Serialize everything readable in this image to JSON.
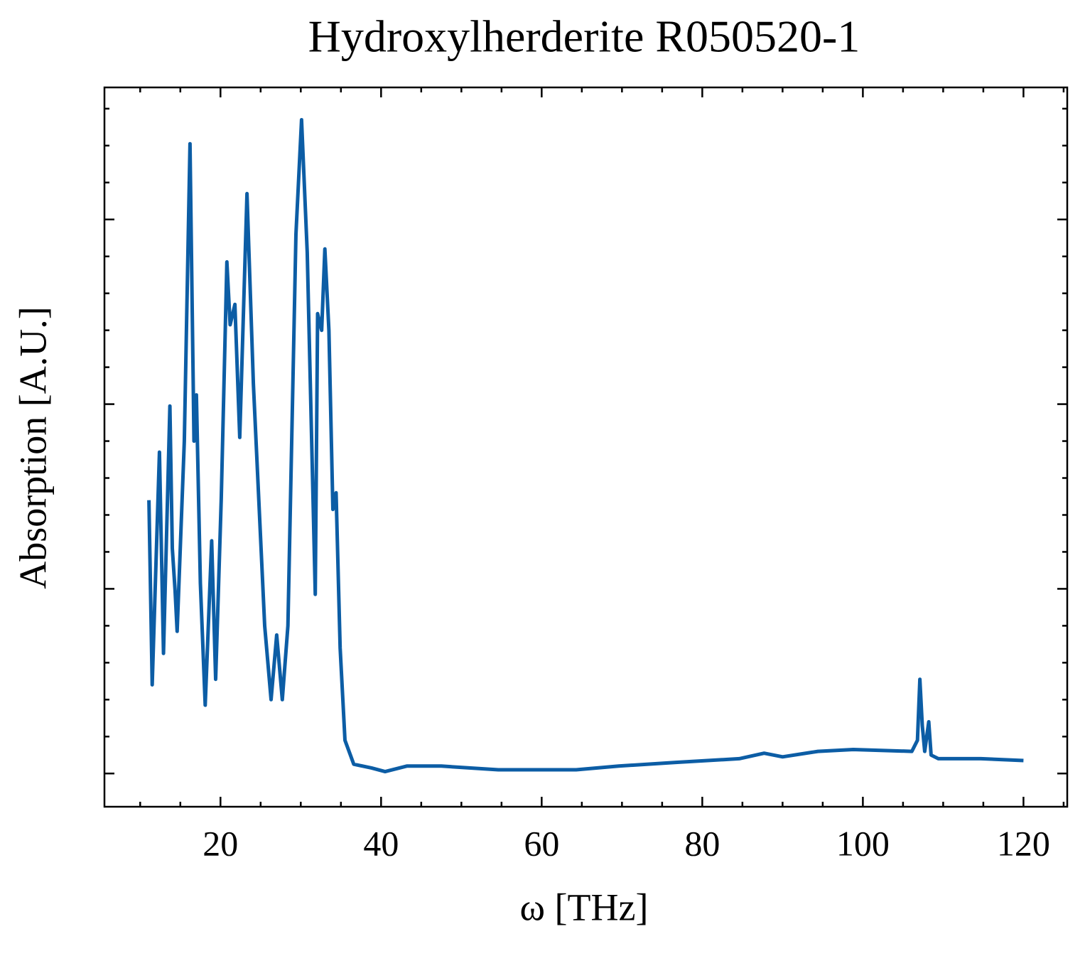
{
  "chart_data": {
    "type": "line",
    "title": "Hydroxylherderite R050520-1",
    "x_label": "ω [THz]",
    "y_label": "Absorption [A.U.]",
    "x": [
      11.09,
      11.5,
      12.4,
      12.9,
      13.7,
      14.0,
      14.35,
      14.6,
      15.5,
      16.2,
      16.7,
      17.0,
      17.5,
      18.1,
      18.9,
      19.4,
      20.1,
      20.8,
      21.2,
      21.8,
      22.4,
      23.3,
      24.1,
      25.5,
      26.3,
      27.0,
      27.7,
      28.4,
      29.4,
      30.1,
      30.8,
      31.8,
      32.1,
      32.6,
      33.0,
      33.5,
      34.0,
      34.4,
      34.9,
      35.5,
      36.6,
      38.8,
      40.5,
      43.2,
      47.5,
      54.6,
      60,
      64.3,
      69.6,
      76.7,
      84.6,
      87.7,
      90,
      94.4,
      98.8,
      106.1,
      106.8,
      107.1,
      107.4,
      107.7,
      108.2,
      108.5,
      109.4,
      114.7,
      120
    ],
    "series": [
      {
        "name": "Hydroxylherderite R050520-1",
        "color": "#0C5DA5",
        "values": [
          1.48,
          0.48,
          1.74,
          0.65,
          1.99,
          1.22,
          0.99,
          0.77,
          1.8,
          3.41,
          1.8,
          2.05,
          1.03,
          0.37,
          1.26,
          0.51,
          1.49,
          2.77,
          2.43,
          2.54,
          1.82,
          3.14,
          2.11,
          0.8,
          0.4,
          0.75,
          0.4,
          0.8,
          2.92,
          3.54,
          2.82,
          0.97,
          2.49,
          2.4,
          2.84,
          2.4,
          1.43,
          1.52,
          0.68,
          0.18,
          0.05,
          0.03,
          0.01,
          0.04,
          0.04,
          0.02,
          0.02,
          0.02,
          0.04,
          0.06,
          0.08,
          0.11,
          0.09,
          0.12,
          0.13,
          0.12,
          0.18,
          0.51,
          0.26,
          0.12,
          0.28,
          0.1,
          0.08,
          0.08,
          0.07
        ]
      }
    ],
    "xlim": [
      5.55,
      125.45
    ],
    "ylim": [
      -0.18,
      3.715
    ],
    "xticks": [
      20,
      40,
      60,
      80,
      100,
      120
    ],
    "xminorticks": [
      10,
      15,
      25,
      30,
      35,
      45,
      50,
      55,
      65,
      70,
      75,
      85,
      90,
      95,
      105,
      110,
      115,
      125
    ],
    "yticks": [
      0,
      1,
      2,
      3
    ],
    "yminorticks": [
      0.2,
      0.4,
      0.6,
      0.8,
      1.2,
      1.4,
      1.6,
      1.8,
      2.2,
      2.4,
      2.6,
      2.8,
      3.2,
      3.4,
      3.6
    ],
    "ytick_labels": false,
    "grid": false
  }
}
